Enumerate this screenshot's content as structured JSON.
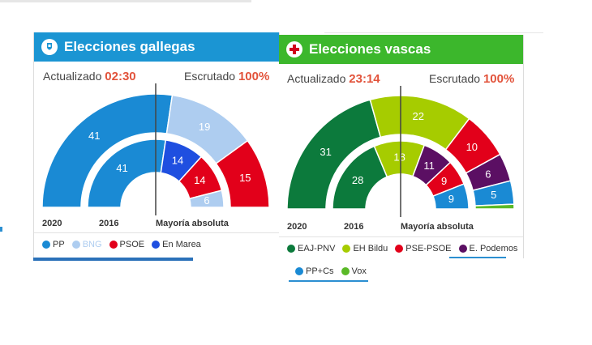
{
  "chart_data": [
    {
      "type": "pie",
      "title": "Elecciones gallegas",
      "status": {
        "updated_label": "Actualizado",
        "updated_time": "02:30",
        "counted_label": "Escrutado",
        "counted_pct": "100%"
      },
      "rings": [
        "2020",
        "2016"
      ],
      "threshold_label": "Mayoría absoluta",
      "series": [
        {
          "name": "2020",
          "values": [
            {
              "party": "PP",
              "seats": 41
            },
            {
              "party": "BNG",
              "seats": 19
            },
            {
              "party": "PSOE",
              "seats": 15
            }
          ]
        },
        {
          "name": "2016",
          "values": [
            {
              "party": "PP",
              "seats": 41
            },
            {
              "party": "En Marea",
              "seats": 14
            },
            {
              "party": "PSOE",
              "seats": 14
            },
            {
              "party": "BNG",
              "seats": 6
            }
          ]
        }
      ],
      "legend": [
        {
          "name": "PP",
          "color": "#1a8ad4"
        },
        {
          "name": "BNG",
          "color": "#aecdf0"
        },
        {
          "name": "PSOE",
          "color": "#e2001a"
        },
        {
          "name": "En Marea",
          "color": "#1f4fe0"
        }
      ],
      "header_color": "#1b95d3",
      "icon": "galicia-shield-icon"
    },
    {
      "type": "pie",
      "title": "Elecciones vascas",
      "status": {
        "updated_label": "Actualizado",
        "updated_time": "23:14",
        "counted_label": "Escrutado",
        "counted_pct": "100%"
      },
      "rings": [
        "2020",
        "2016"
      ],
      "threshold_label": "Mayoría absoluta",
      "series": [
        {
          "name": "2020",
          "values": [
            {
              "party": "EAJ-PNV",
              "seats": 31
            },
            {
              "party": "EH Bildu",
              "seats": 22
            },
            {
              "party": "PSE-PSOE",
              "seats": 10
            },
            {
              "party": "E. Podemos",
              "seats": 6
            },
            {
              "party": "PP+Cs",
              "seats": 5
            },
            {
              "party": "Vox",
              "seats": 1
            }
          ]
        },
        {
          "name": "2016",
          "values": [
            {
              "party": "EAJ-PNV",
              "seats": 28
            },
            {
              "party": "EH Bildu",
              "seats": 18
            },
            {
              "party": "E. Podemos",
              "seats": 11
            },
            {
              "party": "PSE-PSOE",
              "seats": 9
            },
            {
              "party": "PP+Cs",
              "seats": 9
            }
          ]
        }
      ],
      "legend": [
        {
          "name": "EAJ-PNV",
          "color": "#0c7a3c"
        },
        {
          "name": "EH Bildu",
          "color": "#a6cc00"
        },
        {
          "name": "PSE-PSOE",
          "color": "#e2001a"
        },
        {
          "name": "E. Podemos",
          "color": "#5b0f63"
        },
        {
          "name": "PP+Cs",
          "color": "#1a8ad4"
        },
        {
          "name": "Vox",
          "color": "#5ab927"
        }
      ],
      "header_color": "#3cb72c",
      "icon": "basque-cross-icon"
    }
  ]
}
